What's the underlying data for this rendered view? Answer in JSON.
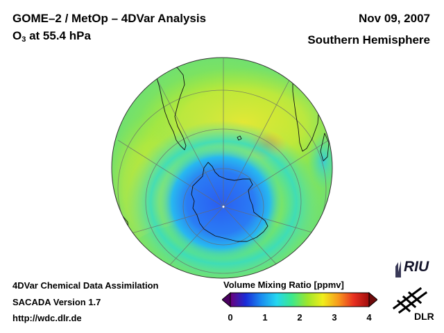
{
  "header": {
    "title": "GOME–2 / MetOp – 4DVar Analysis",
    "species": "O",
    "species_sub": "3",
    "level": " at 55.4 hPa",
    "date": "Nov 09, 2007",
    "region": "Southern Hemisphere"
  },
  "footer": {
    "line1": "4DVar Chemical Data Assimilation",
    "line2": "SACADA Version 1.7",
    "line3": "http://wdc.dlr.de"
  },
  "colorbar": {
    "label": "Volume Mixing Ratio [ppmv]",
    "min": 0,
    "max": 4,
    "ticks": [
      "0",
      "1",
      "2",
      "3",
      "4"
    ],
    "colors": [
      "#6a007a",
      "#1a2cd8",
      "#1a8cf0",
      "#24d6f0",
      "#3ce88c",
      "#9ee62c",
      "#f0ee1c",
      "#f89a1c",
      "#e83020",
      "#a00c0c"
    ]
  },
  "map": {
    "colors": {
      "low": "#2a6cf4",
      "mid_low": "#28c8f0",
      "mid": "#40e0a8",
      "mid_high": "#a8e83c",
      "high": "#f0d828",
      "peak": "#f08c1c"
    }
  },
  "logos": {
    "riu": "RIU",
    "dlr": "DLR"
  }
}
